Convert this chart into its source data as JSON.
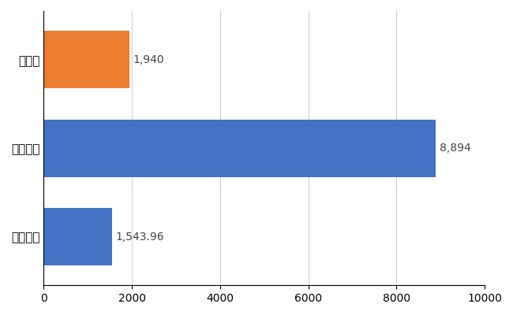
{
  "categories": [
    "全国平均",
    "全国最大",
    "静岡県"
  ],
  "values": [
    1543.96,
    8894,
    1940
  ],
  "bar_colors": [
    "#4472c4",
    "#4472c4",
    "#ed7d31"
  ],
  "value_labels": [
    "1,543.96",
    "8,894",
    "1,940"
  ],
  "xlim": [
    0,
    10000
  ],
  "xticks": [
    0,
    2000,
    4000,
    6000,
    8000,
    10000
  ],
  "background_color": "#ffffff",
  "grid_color": "#d0d0d0",
  "bar_height": 0.65,
  "label_fontsize": 10,
  "tick_fontsize": 10,
  "ylabel_fontsize": 11
}
